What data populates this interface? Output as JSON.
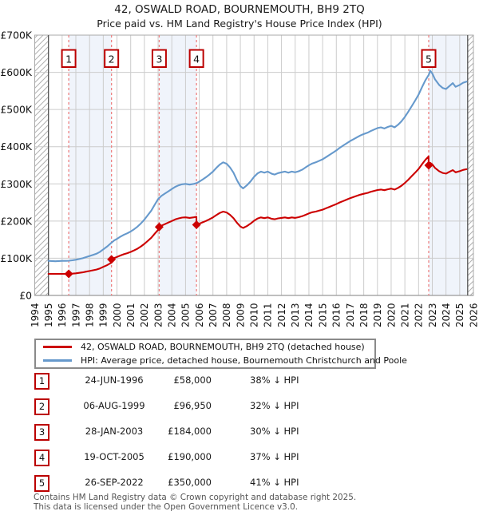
{
  "title": "42, OSWALD ROAD, BOURNEMOUTH, BH9 2TQ",
  "subtitle": "Price paid vs. HM Land Registry's House Price Index (HPI)",
  "legend": {
    "series1": "42, OSWALD ROAD, BOURNEMOUTH, BH9 2TQ (detached house)",
    "series2": "HPI: Average price, detached house, Bournemouth Christchurch and Poole"
  },
  "sales_table": [
    {
      "num": "1",
      "date": "24-JUN-1996",
      "price": "£58,000",
      "vs_hpi": "38% ↓ HPI"
    },
    {
      "num": "2",
      "date": "06-AUG-1999",
      "price": "£96,950",
      "vs_hpi": "32% ↓ HPI"
    },
    {
      "num": "3",
      "date": "28-JAN-2003",
      "price": "£184,000",
      "vs_hpi": "30% ↓ HPI"
    },
    {
      "num": "4",
      "date": "19-OCT-2005",
      "price": "£190,000",
      "vs_hpi": "37% ↓ HPI"
    },
    {
      "num": "5",
      "date": "26-SEP-2022",
      "price": "£350,000",
      "vs_hpi": "41% ↓ HPI"
    }
  ],
  "footer_line1": "Contains HM Land Registry data © Crown copyright and database right 2025.",
  "footer_line2": "This data is licensed under the Open Government Licence v3.0.",
  "colors": {
    "price_line": "#cc0000",
    "hpi_line": "#6699cc",
    "sale_dashed": "#ee8383",
    "band_fill": "#f0f4fb",
    "grid": "#cccccc",
    "plot_border": "#aaaaaa",
    "bottom_axis": "#999999",
    "data_edge": "#555555",
    "hatch": "#b0b0b0",
    "num_box_border": "#bb0000",
    "marker": "#cc0000"
  },
  "chart_data": {
    "type": "line",
    "title": "42, OSWALD ROAD, BOURNEMOUTH, BH9 2TQ — Price paid vs. HPI",
    "units": "GBP thousands",
    "x_axis": {
      "min": 1994,
      "max": 2026,
      "ticks": [
        1994,
        1995,
        1996,
        1997,
        1998,
        1999,
        2000,
        2001,
        2002,
        2003,
        2004,
        2005,
        2006,
        2007,
        2008,
        2009,
        2010,
        2011,
        2012,
        2013,
        2014,
        2015,
        2016,
        2017,
        2018,
        2019,
        2020,
        2021,
        2022,
        2023,
        2024,
        2025,
        2026
      ]
    },
    "y_axis": {
      "min_k": 0,
      "max_k": 700,
      "ticks": [
        [
          0,
          "£0"
        ],
        [
          100,
          "£100K"
        ],
        [
          200,
          "£200K"
        ],
        [
          300,
          "£300K"
        ],
        [
          400,
          "£400K"
        ],
        [
          500,
          "£500K"
        ],
        [
          600,
          "£600K"
        ],
        [
          700,
          "£700K"
        ]
      ]
    },
    "data_range": [
      1995.0,
      2025.58
    ],
    "ownership_bands": [
      [
        1996.48,
        1999.6
      ],
      [
        2003.08,
        2005.8
      ],
      [
        2022.74,
        2025.58
      ]
    ],
    "sales": [
      {
        "label": "1",
        "year": 1996.48,
        "price_k": 58
      },
      {
        "label": "2",
        "year": 1999.6,
        "price_k": 96.95
      },
      {
        "label": "3",
        "year": 2003.08,
        "price_k": 184
      },
      {
        "label": "4",
        "year": 2005.8,
        "price_k": 190
      },
      {
        "label": "5",
        "year": 2022.74,
        "price_k": 350
      }
    ],
    "series": [
      {
        "name": "hpi",
        "color": "#6699cc",
        "points": [
          [
            1995,
            93
          ],
          [
            1995.25,
            92.5
          ],
          [
            1995.5,
            92
          ],
          [
            1995.75,
            92.5
          ],
          [
            1996,
            93
          ],
          [
            1996.3,
            93
          ],
          [
            1996.5,
            93.5
          ],
          [
            1996.75,
            94.5
          ],
          [
            1997,
            96
          ],
          [
            1997.25,
            98
          ],
          [
            1997.5,
            100
          ],
          [
            1997.75,
            103
          ],
          [
            1998,
            106
          ],
          [
            1998.25,
            109
          ],
          [
            1998.5,
            112
          ],
          [
            1998.75,
            117
          ],
          [
            1999,
            124
          ],
          [
            1999.3,
            132
          ],
          [
            1999.6,
            142
          ],
          [
            1999.8,
            148
          ],
          [
            2000,
            152
          ],
          [
            2000.25,
            158
          ],
          [
            2000.5,
            163
          ],
          [
            2000.75,
            167
          ],
          [
            2001,
            172
          ],
          [
            2001.25,
            178
          ],
          [
            2001.5,
            185
          ],
          [
            2001.75,
            194
          ],
          [
            2002,
            204
          ],
          [
            2002.25,
            216
          ],
          [
            2002.5,
            228
          ],
          [
            2002.75,
            244
          ],
          [
            2003,
            259
          ],
          [
            2003.25,
            268
          ],
          [
            2003.5,
            274
          ],
          [
            2003.75,
            280
          ],
          [
            2004,
            286
          ],
          [
            2004.25,
            292
          ],
          [
            2004.5,
            296
          ],
          [
            2004.75,
            299
          ],
          [
            2005,
            300
          ],
          [
            2005.3,
            298
          ],
          [
            2005.6,
            300
          ],
          [
            2005.8,
            302
          ],
          [
            2006,
            306
          ],
          [
            2006.25,
            312
          ],
          [
            2006.5,
            318
          ],
          [
            2006.75,
            325
          ],
          [
            2007,
            333
          ],
          [
            2007.25,
            343
          ],
          [
            2007.5,
            352
          ],
          [
            2007.75,
            358
          ],
          [
            2008,
            354
          ],
          [
            2008.25,
            344
          ],
          [
            2008.5,
            330
          ],
          [
            2008.75,
            310
          ],
          [
            2009,
            294
          ],
          [
            2009.2,
            288
          ],
          [
            2009.5,
            297
          ],
          [
            2009.75,
            307
          ],
          [
            2010,
            319
          ],
          [
            2010.25,
            328
          ],
          [
            2010.5,
            333
          ],
          [
            2010.75,
            330
          ],
          [
            2011,
            333
          ],
          [
            2011.3,
            327
          ],
          [
            2011.5,
            325
          ],
          [
            2011.75,
            329
          ],
          [
            2012,
            331
          ],
          [
            2012.25,
            333
          ],
          [
            2012.5,
            330
          ],
          [
            2012.75,
            333
          ],
          [
            2013,
            331
          ],
          [
            2013.25,
            334
          ],
          [
            2013.5,
            338
          ],
          [
            2013.75,
            344
          ],
          [
            2014,
            350
          ],
          [
            2014.25,
            355
          ],
          [
            2014.5,
            358
          ],
          [
            2014.75,
            362
          ],
          [
            2015,
            366
          ],
          [
            2015.25,
            372
          ],
          [
            2015.5,
            378
          ],
          [
            2015.75,
            384
          ],
          [
            2016,
            390
          ],
          [
            2016.25,
            397
          ],
          [
            2016.5,
            403
          ],
          [
            2016.75,
            409
          ],
          [
            2017,
            415
          ],
          [
            2017.25,
            420
          ],
          [
            2017.5,
            425
          ],
          [
            2017.75,
            430
          ],
          [
            2018,
            434
          ],
          [
            2018.3,
            438
          ],
          [
            2018.5,
            442
          ],
          [
            2018.75,
            446
          ],
          [
            2019,
            450
          ],
          [
            2019.25,
            452
          ],
          [
            2019.5,
            449
          ],
          [
            2019.75,
            453
          ],
          [
            2020,
            456
          ],
          [
            2020.25,
            452
          ],
          [
            2020.5,
            459
          ],
          [
            2020.75,
            468
          ],
          [
            2021,
            480
          ],
          [
            2021.25,
            494
          ],
          [
            2021.5,
            509
          ],
          [
            2021.75,
            524
          ],
          [
            2022,
            540
          ],
          [
            2022.25,
            560
          ],
          [
            2022.5,
            579
          ],
          [
            2022.74,
            593
          ],
          [
            2022.85,
            604
          ],
          [
            2023,
            597
          ],
          [
            2023.2,
            581
          ],
          [
            2023.5,
            566
          ],
          [
            2023.75,
            558
          ],
          [
            2024,
            555
          ],
          [
            2024.25,
            563
          ],
          [
            2024.5,
            571
          ],
          [
            2024.7,
            561
          ],
          [
            2025,
            566
          ],
          [
            2025.25,
            572
          ],
          [
            2025.5,
            575
          ]
        ]
      },
      {
        "name": "price_paid",
        "color": "#cc0000",
        "points": [
          [
            1995,
            58
          ],
          [
            1995.5,
            58
          ],
          [
            1996,
            58
          ],
          [
            1996.48,
            58
          ],
          [
            1996.75,
            58.6
          ],
          [
            1997,
            59.5
          ],
          [
            1997.25,
            60.8
          ],
          [
            1997.5,
            62
          ],
          [
            1997.75,
            63.9
          ],
          [
            1998,
            65.8
          ],
          [
            1998.25,
            67.6
          ],
          [
            1998.5,
            69.5
          ],
          [
            1998.75,
            72.6
          ],
          [
            1999,
            76.9
          ],
          [
            1999.3,
            81.9
          ],
          [
            1999.59,
            88.1
          ],
          [
            1999.6,
            96.95
          ],
          [
            1999.8,
            100.6
          ],
          [
            2000,
            103.4
          ],
          [
            2000.25,
            107.4
          ],
          [
            2000.5,
            110.8
          ],
          [
            2000.75,
            113.6
          ],
          [
            2001,
            117
          ],
          [
            2001.25,
            121
          ],
          [
            2001.5,
            125.8
          ],
          [
            2001.75,
            131.9
          ],
          [
            2002,
            138.7
          ],
          [
            2002.25,
            146.9
          ],
          [
            2002.5,
            155
          ],
          [
            2002.75,
            165.9
          ],
          [
            2003,
            176.1
          ],
          [
            2003.08,
            184
          ],
          [
            2003.25,
            187.6
          ],
          [
            2003.5,
            191.8
          ],
          [
            2003.75,
            196
          ],
          [
            2004,
            200.2
          ],
          [
            2004.25,
            204.4
          ],
          [
            2004.5,
            207.2
          ],
          [
            2004.75,
            209.3
          ],
          [
            2005,
            210
          ],
          [
            2005.3,
            208.6
          ],
          [
            2005.6,
            210
          ],
          [
            2005.79,
            211.4
          ],
          [
            2005.8,
            190
          ],
          [
            2006,
            192.8
          ],
          [
            2006.25,
            196.6
          ],
          [
            2006.5,
            200.3
          ],
          [
            2006.75,
            204.8
          ],
          [
            2007,
            209.8
          ],
          [
            2007.25,
            216.1
          ],
          [
            2007.5,
            221.8
          ],
          [
            2007.75,
            225.5
          ],
          [
            2008,
            223
          ],
          [
            2008.25,
            216.7
          ],
          [
            2008.5,
            207.9
          ],
          [
            2008.75,
            195.3
          ],
          [
            2009,
            185.2
          ],
          [
            2009.2,
            181.4
          ],
          [
            2009.5,
            187.1
          ],
          [
            2009.75,
            193.4
          ],
          [
            2010,
            201
          ],
          [
            2010.25,
            206.6
          ],
          [
            2010.5,
            209.8
          ],
          [
            2010.75,
            207.9
          ],
          [
            2011,
            209.8
          ],
          [
            2011.3,
            206
          ],
          [
            2011.5,
            204.8
          ],
          [
            2011.75,
            207.3
          ],
          [
            2012,
            208.5
          ],
          [
            2012.25,
            209.8
          ],
          [
            2012.5,
            207.9
          ],
          [
            2012.75,
            209.8
          ],
          [
            2013,
            208.5
          ],
          [
            2013.25,
            210.4
          ],
          [
            2013.5,
            212.9
          ],
          [
            2013.75,
            216.7
          ],
          [
            2014,
            220.5
          ],
          [
            2014.25,
            223.7
          ],
          [
            2014.5,
            225.5
          ],
          [
            2014.75,
            228.1
          ],
          [
            2015,
            230.6
          ],
          [
            2015.25,
            234.4
          ],
          [
            2015.5,
            238.1
          ],
          [
            2015.75,
            241.9
          ],
          [
            2016,
            245.7
          ],
          [
            2016.25,
            250.1
          ],
          [
            2016.5,
            253.9
          ],
          [
            2016.75,
            257.7
          ],
          [
            2017,
            261.5
          ],
          [
            2017.25,
            264.6
          ],
          [
            2017.5,
            267.8
          ],
          [
            2017.75,
            270.9
          ],
          [
            2018,
            273.4
          ],
          [
            2018.3,
            275.9
          ],
          [
            2018.5,
            278.5
          ],
          [
            2018.75,
            281
          ],
          [
            2019,
            283.5
          ],
          [
            2019.25,
            284.8
          ],
          [
            2019.5,
            282.9
          ],
          [
            2019.75,
            285.4
          ],
          [
            2020,
            287.3
          ],
          [
            2020.25,
            284.8
          ],
          [
            2020.5,
            289.2
          ],
          [
            2020.75,
            294.8
          ],
          [
            2021,
            302.4
          ],
          [
            2021.25,
            311.2
          ],
          [
            2021.5,
            320.7
          ],
          [
            2021.75,
            330.1
          ],
          [
            2022,
            340.2
          ],
          [
            2022.25,
            352.8
          ],
          [
            2022.5,
            364.8
          ],
          [
            2022.73,
            373.6
          ],
          [
            2022.74,
            350
          ],
          [
            2022.85,
            356.5
          ],
          [
            2023,
            352.3
          ],
          [
            2023.2,
            342.9
          ],
          [
            2023.5,
            334.1
          ],
          [
            2023.75,
            329.3
          ],
          [
            2024,
            327.6
          ],
          [
            2024.25,
            332.3
          ],
          [
            2024.5,
            337
          ],
          [
            2024.7,
            331.1
          ],
          [
            2025,
            334.1
          ],
          [
            2025.25,
            337.6
          ],
          [
            2025.5,
            339.4
          ]
        ]
      }
    ],
    "legend_position": "bottom",
    "grid": true
  }
}
